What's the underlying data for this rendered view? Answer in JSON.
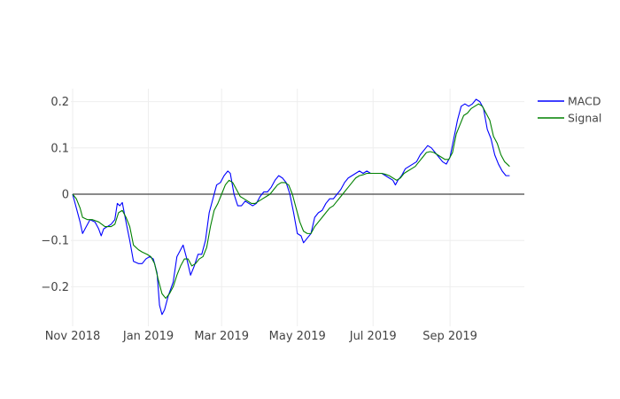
{
  "chart_data": {
    "type": "line",
    "x_type": "date",
    "xlim": [
      "2018-11-01",
      "2019-12-31"
    ],
    "ylim": [
      -0.28,
      0.23
    ],
    "y_ticks": [
      -0.2,
      -0.1,
      0,
      0.1,
      0.2
    ],
    "y_tick_labels": [
      "−0.2",
      "−0.1",
      "0",
      "0.1",
      "0.2"
    ],
    "x_ticks": [
      "2018-11-01",
      "2019-01-01",
      "2019-03-01",
      "2019-05-01",
      "2019-07-01",
      "2019-09-01"
    ],
    "x_tick_labels": [
      "Nov 2018",
      "Jan 2019",
      "Mar 2019",
      "May 2019",
      "Jul 2019",
      "Sep 2019"
    ],
    "grid": true,
    "zero_line": true,
    "legend_position": "top-right",
    "series": [
      {
        "name": "MACD",
        "color": "#0000ff",
        "points": [
          [
            "2018-11-01",
            0.0
          ],
          [
            "2018-11-04",
            -0.03
          ],
          [
            "2018-11-07",
            -0.06
          ],
          [
            "2018-11-09",
            -0.085
          ],
          [
            "2018-11-12",
            -0.07
          ],
          [
            "2018-11-15",
            -0.055
          ],
          [
            "2018-11-19",
            -0.06
          ],
          [
            "2018-11-22",
            -0.075
          ],
          [
            "2018-11-24",
            -0.09
          ],
          [
            "2018-11-26",
            -0.075
          ],
          [
            "2018-11-29",
            -0.07
          ],
          [
            "2018-12-02",
            -0.065
          ],
          [
            "2018-12-05",
            -0.055
          ],
          [
            "2018-12-07",
            -0.02
          ],
          [
            "2018-12-09",
            -0.025
          ],
          [
            "2018-12-11",
            -0.018
          ],
          [
            "2018-12-14",
            -0.06
          ],
          [
            "2018-12-17",
            -0.1
          ],
          [
            "2018-12-20",
            -0.145
          ],
          [
            "2018-12-24",
            -0.15
          ],
          [
            "2018-12-27",
            -0.15
          ],
          [
            "2018-12-30",
            -0.14
          ],
          [
            "2019-01-02",
            -0.135
          ],
          [
            "2019-01-05",
            -0.14
          ],
          [
            "2019-01-08",
            -0.17
          ],
          [
            "2019-01-10",
            -0.24
          ],
          [
            "2019-01-12",
            -0.26
          ],
          [
            "2019-01-14",
            -0.25
          ],
          [
            "2019-01-17",
            -0.22
          ],
          [
            "2019-01-21",
            -0.19
          ],
          [
            "2019-01-24",
            -0.135
          ],
          [
            "2019-01-27",
            -0.12
          ],
          [
            "2019-01-29",
            -0.11
          ],
          [
            "2019-02-01",
            -0.14
          ],
          [
            "2019-02-04",
            -0.175
          ],
          [
            "2019-02-07",
            -0.155
          ],
          [
            "2019-02-10",
            -0.13
          ],
          [
            "2019-02-13",
            -0.13
          ],
          [
            "2019-02-16",
            -0.1
          ],
          [
            "2019-02-19",
            -0.04
          ],
          [
            "2019-02-22",
            -0.01
          ],
          [
            "2019-02-25",
            0.02
          ],
          [
            "2019-02-28",
            0.025
          ],
          [
            "2019-03-03",
            0.04
          ],
          [
            "2019-03-06",
            0.05
          ],
          [
            "2019-03-08",
            0.045
          ],
          [
            "2019-03-11",
            0.0
          ],
          [
            "2019-03-14",
            -0.025
          ],
          [
            "2019-03-17",
            -0.025
          ],
          [
            "2019-03-20",
            -0.015
          ],
          [
            "2019-03-23",
            -0.02
          ],
          [
            "2019-03-26",
            -0.025
          ],
          [
            "2019-03-29",
            -0.02
          ],
          [
            "2019-04-01",
            -0.005
          ],
          [
            "2019-04-04",
            0.005
          ],
          [
            "2019-04-07",
            0.005
          ],
          [
            "2019-04-10",
            0.015
          ],
          [
            "2019-04-13",
            0.03
          ],
          [
            "2019-04-16",
            0.04
          ],
          [
            "2019-04-19",
            0.035
          ],
          [
            "2019-04-22",
            0.025
          ],
          [
            "2019-04-25",
            0.0
          ],
          [
            "2019-04-28",
            -0.04
          ],
          [
            "2019-05-01",
            -0.085
          ],
          [
            "2019-05-04",
            -0.09
          ],
          [
            "2019-05-06",
            -0.105
          ],
          [
            "2019-05-09",
            -0.095
          ],
          [
            "2019-05-12",
            -0.085
          ],
          [
            "2019-05-15",
            -0.05
          ],
          [
            "2019-05-18",
            -0.04
          ],
          [
            "2019-05-21",
            -0.035
          ],
          [
            "2019-05-24",
            -0.02
          ],
          [
            "2019-05-27",
            -0.01
          ],
          [
            "2019-05-30",
            -0.01
          ],
          [
            "2019-06-02",
            0.0
          ],
          [
            "2019-06-05",
            0.01
          ],
          [
            "2019-06-08",
            0.025
          ],
          [
            "2019-06-11",
            0.035
          ],
          [
            "2019-06-14",
            0.04
          ],
          [
            "2019-06-17",
            0.045
          ],
          [
            "2019-06-20",
            0.05
          ],
          [
            "2019-06-23",
            0.045
          ],
          [
            "2019-06-26",
            0.05
          ],
          [
            "2019-06-29",
            0.045
          ],
          [
            "2019-07-02",
            0.045
          ],
          [
            "2019-07-05",
            0.045
          ],
          [
            "2019-07-08",
            0.045
          ],
          [
            "2019-07-11",
            0.04
          ],
          [
            "2019-07-14",
            0.035
          ],
          [
            "2019-07-17",
            0.03
          ],
          [
            "2019-07-19",
            0.02
          ],
          [
            "2019-07-21",
            0.03
          ],
          [
            "2019-07-24",
            0.04
          ],
          [
            "2019-07-27",
            0.055
          ],
          [
            "2019-07-30",
            0.06
          ],
          [
            "2019-08-02",
            0.065
          ],
          [
            "2019-08-05",
            0.07
          ],
          [
            "2019-08-08",
            0.085
          ],
          [
            "2019-08-11",
            0.095
          ],
          [
            "2019-08-14",
            0.105
          ],
          [
            "2019-08-17",
            0.1
          ],
          [
            "2019-08-20",
            0.09
          ],
          [
            "2019-08-23",
            0.08
          ],
          [
            "2019-08-26",
            0.07
          ],
          [
            "2019-08-29",
            0.065
          ],
          [
            "2019-09-01",
            0.08
          ],
          [
            "2019-09-04",
            0.12
          ],
          [
            "2019-09-07",
            0.16
          ],
          [
            "2019-09-10",
            0.19
          ],
          [
            "2019-09-13",
            0.195
          ],
          [
            "2019-09-16",
            0.19
          ],
          [
            "2019-09-19",
            0.195
          ],
          [
            "2019-09-22",
            0.205
          ],
          [
            "2019-09-25",
            0.2
          ],
          [
            "2019-09-28",
            0.185
          ],
          [
            "2019-10-01",
            0.14
          ],
          [
            "2019-10-04",
            0.12
          ],
          [
            "2019-10-07",
            0.085
          ],
          [
            "2019-10-10",
            0.065
          ],
          [
            "2019-10-13",
            0.05
          ],
          [
            "2019-10-16",
            0.04
          ],
          [
            "2019-10-19",
            0.04
          ]
        ]
      },
      {
        "name": "Signal",
        "color": "#008000",
        "points": [
          [
            "2018-11-01",
            0.0
          ],
          [
            "2018-11-04",
            -0.01
          ],
          [
            "2018-11-07",
            -0.03
          ],
          [
            "2018-11-09",
            -0.05
          ],
          [
            "2018-11-13",
            -0.055
          ],
          [
            "2018-11-17",
            -0.055
          ],
          [
            "2018-11-22",
            -0.06
          ],
          [
            "2018-11-27",
            -0.07
          ],
          [
            "2018-12-02",
            -0.07
          ],
          [
            "2018-12-05",
            -0.065
          ],
          [
            "2018-12-08",
            -0.04
          ],
          [
            "2018-12-11",
            -0.035
          ],
          [
            "2018-12-14",
            -0.05
          ],
          [
            "2018-12-17",
            -0.07
          ],
          [
            "2018-12-20",
            -0.11
          ],
          [
            "2018-12-24",
            -0.12
          ],
          [
            "2018-12-27",
            -0.125
          ],
          [
            "2018-12-31",
            -0.13
          ],
          [
            "2019-01-03",
            -0.135
          ],
          [
            "2019-01-06",
            -0.15
          ],
          [
            "2019-01-09",
            -0.185
          ],
          [
            "2019-01-12",
            -0.215
          ],
          [
            "2019-01-15",
            -0.225
          ],
          [
            "2019-01-18",
            -0.215
          ],
          [
            "2019-01-21",
            -0.2
          ],
          [
            "2019-01-24",
            -0.175
          ],
          [
            "2019-01-27",
            -0.155
          ],
          [
            "2019-01-30",
            -0.14
          ],
          [
            "2019-02-02",
            -0.14
          ],
          [
            "2019-02-05",
            -0.155
          ],
          [
            "2019-02-08",
            -0.15
          ],
          [
            "2019-02-11",
            -0.14
          ],
          [
            "2019-02-14",
            -0.135
          ],
          [
            "2019-02-17",
            -0.115
          ],
          [
            "2019-02-20",
            -0.07
          ],
          [
            "2019-02-23",
            -0.035
          ],
          [
            "2019-02-26",
            -0.02
          ],
          [
            "2019-03-01",
            0.0
          ],
          [
            "2019-03-04",
            0.02
          ],
          [
            "2019-03-07",
            0.03
          ],
          [
            "2019-03-10",
            0.025
          ],
          [
            "2019-03-13",
            0.01
          ],
          [
            "2019-03-16",
            -0.005
          ],
          [
            "2019-03-19",
            -0.01
          ],
          [
            "2019-03-22",
            -0.015
          ],
          [
            "2019-03-25",
            -0.02
          ],
          [
            "2019-03-28",
            -0.02
          ],
          [
            "2019-03-31",
            -0.015
          ],
          [
            "2019-04-03",
            -0.01
          ],
          [
            "2019-04-06",
            -0.005
          ],
          [
            "2019-04-09",
            0.0
          ],
          [
            "2019-04-12",
            0.01
          ],
          [
            "2019-04-15",
            0.02
          ],
          [
            "2019-04-18",
            0.025
          ],
          [
            "2019-04-21",
            0.025
          ],
          [
            "2019-04-24",
            0.02
          ],
          [
            "2019-04-27",
            0.0
          ],
          [
            "2019-04-30",
            -0.03
          ],
          [
            "2019-05-03",
            -0.06
          ],
          [
            "2019-05-06",
            -0.08
          ],
          [
            "2019-05-09",
            -0.085
          ],
          [
            "2019-05-12",
            -0.085
          ],
          [
            "2019-05-15",
            -0.07
          ],
          [
            "2019-05-18",
            -0.06
          ],
          [
            "2019-05-21",
            -0.05
          ],
          [
            "2019-05-24",
            -0.04
          ],
          [
            "2019-05-27",
            -0.03
          ],
          [
            "2019-05-30",
            -0.025
          ],
          [
            "2019-06-02",
            -0.015
          ],
          [
            "2019-06-05",
            -0.005
          ],
          [
            "2019-06-08",
            0.005
          ],
          [
            "2019-06-11",
            0.015
          ],
          [
            "2019-06-14",
            0.025
          ],
          [
            "2019-06-17",
            0.035
          ],
          [
            "2019-06-20",
            0.04
          ],
          [
            "2019-06-23",
            0.042
          ],
          [
            "2019-06-26",
            0.045
          ],
          [
            "2019-06-29",
            0.045
          ],
          [
            "2019-07-02",
            0.045
          ],
          [
            "2019-07-05",
            0.045
          ],
          [
            "2019-07-08",
            0.045
          ],
          [
            "2019-07-11",
            0.043
          ],
          [
            "2019-07-14",
            0.04
          ],
          [
            "2019-07-17",
            0.035
          ],
          [
            "2019-07-20",
            0.03
          ],
          [
            "2019-07-23",
            0.035
          ],
          [
            "2019-07-26",
            0.045
          ],
          [
            "2019-07-29",
            0.05
          ],
          [
            "2019-08-01",
            0.055
          ],
          [
            "2019-08-04",
            0.06
          ],
          [
            "2019-08-07",
            0.07
          ],
          [
            "2019-08-10",
            0.08
          ],
          [
            "2019-08-13",
            0.09
          ],
          [
            "2019-08-16",
            0.092
          ],
          [
            "2019-08-19",
            0.09
          ],
          [
            "2019-08-22",
            0.085
          ],
          [
            "2019-08-25",
            0.08
          ],
          [
            "2019-08-28",
            0.075
          ],
          [
            "2019-08-31",
            0.075
          ],
          [
            "2019-09-03",
            0.09
          ],
          [
            "2019-09-06",
            0.13
          ],
          [
            "2019-09-09",
            0.15
          ],
          [
            "2019-09-12",
            0.17
          ],
          [
            "2019-09-15",
            0.175
          ],
          [
            "2019-09-18",
            0.185
          ],
          [
            "2019-09-21",
            0.19
          ],
          [
            "2019-09-24",
            0.195
          ],
          [
            "2019-09-27",
            0.19
          ],
          [
            "2019-09-30",
            0.175
          ],
          [
            "2019-10-03",
            0.16
          ],
          [
            "2019-10-06",
            0.125
          ],
          [
            "2019-10-09",
            0.11
          ],
          [
            "2019-10-12",
            0.085
          ],
          [
            "2019-10-15",
            0.07
          ],
          [
            "2019-10-19",
            0.06
          ]
        ]
      }
    ]
  }
}
